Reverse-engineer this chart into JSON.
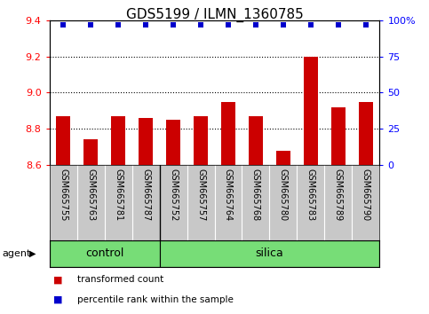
{
  "title": "GDS5199 / ILMN_1360785",
  "samples": [
    "GSM665755",
    "GSM665763",
    "GSM665781",
    "GSM665787",
    "GSM665752",
    "GSM665757",
    "GSM665764",
    "GSM665768",
    "GSM665780",
    "GSM665783",
    "GSM665789",
    "GSM665790"
  ],
  "groups": [
    "control",
    "control",
    "control",
    "control",
    "silica",
    "silica",
    "silica",
    "silica",
    "silica",
    "silica",
    "silica",
    "silica"
  ],
  "bar_values": [
    8.87,
    8.74,
    8.87,
    8.86,
    8.85,
    8.87,
    8.95,
    8.87,
    8.68,
    9.2,
    8.92,
    8.95
  ],
  "percentile_values": [
    97,
    97,
    97,
    97,
    97,
    97,
    97,
    97,
    97,
    97,
    97,
    97
  ],
  "ylim_left": [
    8.6,
    9.4
  ],
  "ylim_right": [
    0,
    100
  ],
  "yticks_left": [
    8.6,
    8.8,
    9.0,
    9.2,
    9.4
  ],
  "yticks_right": [
    0,
    25,
    50,
    75,
    100
  ],
  "bar_color": "#cc0000",
  "dot_color": "#0000cc",
  "green_color": "#77dd77",
  "bg_color": "#c8c8c8",
  "legend_bar_label": "transformed count",
  "legend_dot_label": "percentile rank within the sample",
  "agent_label": "agent",
  "control_label": "control",
  "silica_label": "silica",
  "title_fontsize": 11,
  "tick_fontsize": 8,
  "label_fontsize": 7,
  "dotted_yticks": [
    8.8,
    9.0,
    9.2
  ],
  "n_control": 4,
  "n_silica": 8
}
